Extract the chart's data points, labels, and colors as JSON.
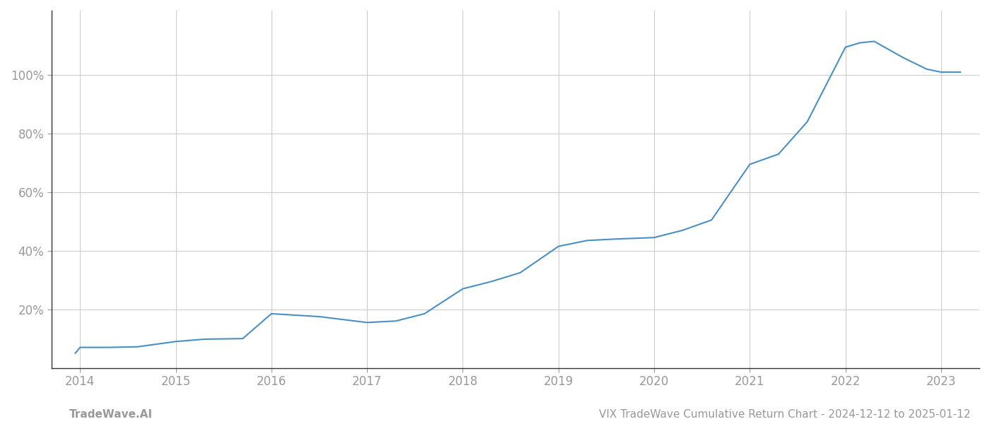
{
  "x_years": [
    2013.95,
    2014.0,
    2014.3,
    2014.6,
    2015.0,
    2015.3,
    2015.7,
    2016.0,
    2016.5,
    2017.0,
    2017.3,
    2017.6,
    2018.0,
    2018.3,
    2018.6,
    2019.0,
    2019.3,
    2019.6,
    2020.0,
    2020.3,
    2020.6,
    2021.0,
    2021.3,
    2021.6,
    2022.0,
    2022.15,
    2022.3,
    2022.6,
    2022.85,
    2023.0,
    2023.2
  ],
  "y_values": [
    0.05,
    0.07,
    0.07,
    0.072,
    0.09,
    0.098,
    0.1,
    0.185,
    0.175,
    0.155,
    0.16,
    0.185,
    0.27,
    0.295,
    0.325,
    0.415,
    0.435,
    0.44,
    0.445,
    0.47,
    0.505,
    0.695,
    0.73,
    0.84,
    1.095,
    1.11,
    1.115,
    1.06,
    1.02,
    1.01,
    1.01
  ],
  "line_color": "#4a90c4",
  "line_width": 1.5,
  "background_color": "#ffffff",
  "grid_color": "#cccccc",
  "tick_label_color": "#999999",
  "x_ticks": [
    2014,
    2015,
    2016,
    2017,
    2018,
    2019,
    2020,
    2021,
    2022,
    2023
  ],
  "y_ticks": [
    0.2,
    0.4,
    0.6,
    0.8,
    1.0
  ],
  "y_tick_labels": [
    "20%",
    "40%",
    "60%",
    "80%",
    "100%"
  ],
  "ylim": [
    0.0,
    1.22
  ],
  "xlim": [
    2013.7,
    2023.4
  ],
  "footer_left": "TradeWave.AI",
  "footer_right": "VIX TradeWave Cumulative Return Chart - 2024-12-12 to 2025-01-12",
  "footer_color": "#999999",
  "footer_fontsize": 11,
  "left_spine_color": "#333333",
  "bottom_spine_color": "#333333"
}
